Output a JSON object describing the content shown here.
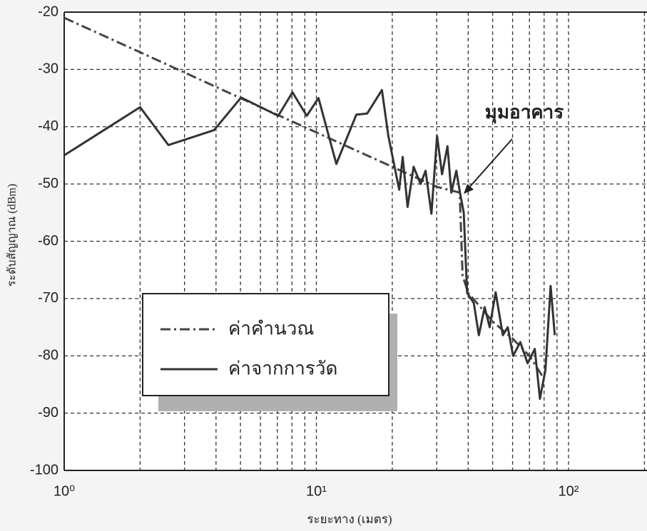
{
  "chart_data": {
    "type": "line",
    "xlabel": "ระยะทาง (เมตร)",
    "ylabel": "ระดับสัญญาณ (dBm)",
    "annotation": "มุมอาคาร",
    "xscale": "log",
    "xlim": [
      1,
      200
    ],
    "xticks": [
      {
        "value": 1,
        "label": "10⁰"
      },
      {
        "value": 10,
        "label": "10¹"
      },
      {
        "value": 100,
        "label": "10²"
      }
    ],
    "xminorticks": [
      2,
      3,
      4,
      5,
      6,
      7,
      8,
      9,
      20,
      30,
      40,
      50,
      60,
      70,
      80,
      90,
      200
    ],
    "ylim": [
      -100,
      -20
    ],
    "yticks": [
      -100,
      -90,
      -80,
      -70,
      -60,
      -50,
      -40,
      -30,
      -20
    ],
    "grid": true,
    "legend": "lower left",
    "series": [
      {
        "name": "ค่าคำนวณ",
        "color": "#444444",
        "dash": "dashdot",
        "x": [
          1,
          2,
          5,
          10,
          20,
          30,
          37,
          38,
          40,
          50,
          60,
          70,
          80
        ],
        "values": [
          -21,
          -27,
          -35,
          -41,
          -47,
          -50.5,
          -51.5,
          -66,
          -69,
          -74,
          -77,
          -80,
          -84
        ]
      },
      {
        "name": "ค่าจากการวัด",
        "color": "#333333",
        "dash": "solid",
        "x": [
          1,
          2,
          2.59,
          3.93,
          5.03,
          7.06,
          8.04,
          9.16,
          10.2,
          12,
          14.4,
          15.9,
          18.2,
          19.3,
          21.3,
          22,
          23,
          24.3,
          25.9,
          27.1,
          28.6,
          30.1,
          31.5,
          33.1,
          34.3,
          35.9,
          37.1,
          38.4,
          39.6,
          42.1,
          44.1,
          46.5,
          48.7,
          51.4,
          54.9,
          57.4,
          60.3,
          64.4,
          68.8,
          73.5,
          77,
          81,
          84.9,
          88.2
        ],
        "values": [
          -45,
          -36.6,
          -43.2,
          -40.6,
          -34.9,
          -38.1,
          -34,
          -38.1,
          -35,
          -46.5,
          -37.9,
          -37.7,
          -33.6,
          -41.6,
          -51,
          -45.3,
          -54,
          -47,
          -50,
          -47.7,
          -55.2,
          -41.6,
          -48.3,
          -43.4,
          -51.5,
          -47.7,
          -51.5,
          -55,
          -69,
          -70.8,
          -76.4,
          -71.5,
          -75,
          -68.9,
          -76.4,
          -75,
          -80,
          -77.6,
          -81.3,
          -78.8,
          -87.5,
          -82.5,
          -67.8,
          -76.4
        ]
      }
    ]
  }
}
